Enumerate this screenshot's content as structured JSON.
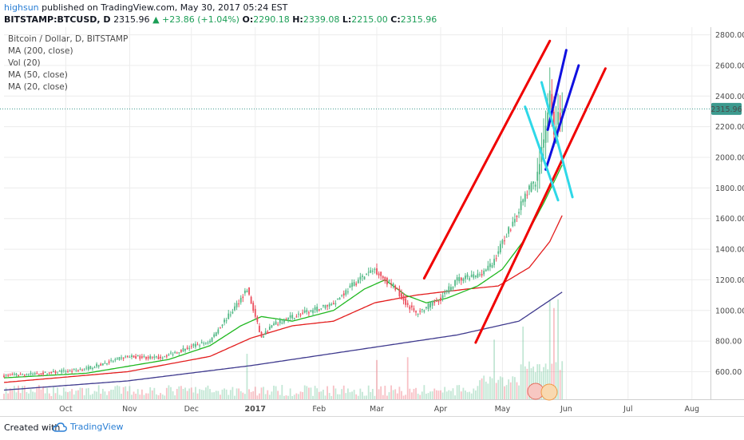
{
  "header": {
    "author": "highsun",
    "published_text": "published on TradingView.com, May 30, 2017 05:24 EST",
    "symbol": "BITSTAMP:BTCUSD, D",
    "last": "2315.96",
    "change": "▲ +23.86 (+1.04%)",
    "open_label": "O:",
    "open": "2290.18",
    "high_label": "H:",
    "high": "2339.08",
    "low_label": "L:",
    "low": "2215.00",
    "close_label": "C:",
    "close": "2315.96"
  },
  "legend": {
    "title": "Bitcoin / Dollar, D, BITSTAMP",
    "items": [
      "MA (200, close)",
      "Vol (20)",
      "MA (50, close)",
      "MA (20, close)"
    ]
  },
  "price_label": "2315.96",
  "footer": {
    "created_with": "Created with",
    "brand": "TradingView"
  },
  "colors": {
    "up": "#53b987",
    "down": "#eb4d5c",
    "ma200": "#3f3a8e",
    "ma50": "#e31e1e",
    "ma20": "#20b820",
    "trend_red": "#f00000",
    "trend_blue": "#1010e0",
    "trend_cyan": "#2ed8e8",
    "price_tag": "#3c9a8e"
  },
  "chart_data": {
    "type": "candlestick",
    "title": "Bitcoin / Dollar, D, BITSTAMP",
    "x_tick_labels": [
      "Oct",
      "Nov",
      "Dec",
      "2017",
      "Feb",
      "Mar",
      "Apr",
      "May",
      "Jun",
      "Jul",
      "Aug"
    ],
    "x_tick_days": [
      30,
      61,
      91,
      122,
      153,
      181,
      212,
      242,
      273,
      303,
      334
    ],
    "y_ticks": [
      600,
      800,
      1000,
      1200,
      1400,
      1600,
      1800,
      2000,
      2200,
      2400,
      2600,
      2800
    ],
    "y_range": [
      420,
      2850
    ],
    "last_close": 2315.96,
    "series_keypoints": {
      "close": [
        [
          0,
          575
        ],
        [
          20,
          590
        ],
        [
          40,
          620
        ],
        [
          60,
          700
        ],
        [
          75,
          690
        ],
        [
          90,
          760
        ],
        [
          100,
          800
        ],
        [
          105,
          900
        ],
        [
          110,
          980
        ],
        [
          118,
          1140
        ],
        [
          121,
          1000
        ],
        [
          125,
          820
        ],
        [
          130,
          900
        ],
        [
          140,
          960
        ],
        [
          150,
          1000
        ],
        [
          160,
          1050
        ],
        [
          172,
          1200
        ],
        [
          180,
          1270
        ],
        [
          185,
          1200
        ],
        [
          190,
          1150
        ],
        [
          195,
          1050
        ],
        [
          200,
          980
        ],
        [
          205,
          1020
        ],
        [
          212,
          1080
        ],
        [
          220,
          1200
        ],
        [
          230,
          1230
        ],
        [
          237,
          1300
        ],
        [
          242,
          1450
        ],
        [
          248,
          1600
        ],
        [
          253,
          1750
        ],
        [
          258,
          1850
        ],
        [
          262,
          2100
        ],
        [
          265,
          2400
        ],
        [
          267,
          2150
        ],
        [
          269,
          2300
        ],
        [
          270,
          2260
        ],
        [
          271,
          2316
        ]
      ],
      "ma20": [
        [
          0,
          560
        ],
        [
          40,
          590
        ],
        [
          80,
          680
        ],
        [
          100,
          770
        ],
        [
          115,
          900
        ],
        [
          125,
          960
        ],
        [
          140,
          930
        ],
        [
          160,
          1000
        ],
        [
          175,
          1140
        ],
        [
          185,
          1200
        ],
        [
          195,
          1100
        ],
        [
          205,
          1050
        ],
        [
          215,
          1080
        ],
        [
          230,
          1160
        ],
        [
          242,
          1270
        ],
        [
          252,
          1450
        ],
        [
          262,
          1700
        ],
        [
          271,
          1950
        ]
      ],
      "ma50": [
        [
          0,
          530
        ],
        [
          60,
          600
        ],
        [
          100,
          700
        ],
        [
          120,
          820
        ],
        [
          140,
          900
        ],
        [
          160,
          930
        ],
        [
          180,
          1050
        ],
        [
          200,
          1100
        ],
        [
          225,
          1140
        ],
        [
          240,
          1160
        ],
        [
          255,
          1280
        ],
        [
          265,
          1450
        ],
        [
          271,
          1620
        ]
      ],
      "ma200": [
        [
          0,
          480
        ],
        [
          60,
          540
        ],
        [
          120,
          640
        ],
        [
          180,
          760
        ],
        [
          220,
          840
        ],
        [
          250,
          930
        ],
        [
          271,
          1120
        ]
      ]
    },
    "volume_peak_days": [
      118,
      181,
      196,
      238,
      252,
      265,
      267,
      269
    ],
    "trendlines": [
      {
        "color": "red",
        "from": [
          204,
          1210
        ],
        "to": [
          265,
          2760
        ]
      },
      {
        "color": "red",
        "from": [
          229,
          790
        ],
        "to": [
          292,
          2580
        ]
      },
      {
        "color": "blue",
        "from": [
          264,
          2180
        ],
        "to": [
          273,
          2700
        ]
      },
      {
        "color": "blue",
        "from": [
          263,
          1920
        ],
        "to": [
          279,
          2600
        ]
      },
      {
        "color": "cyan",
        "from": [
          253,
          2330
        ],
        "to": [
          269,
          1720
        ]
      },
      {
        "color": "cyan",
        "from": [
          261,
          2490
        ],
        "to": [
          276,
          1740
        ]
      }
    ]
  }
}
